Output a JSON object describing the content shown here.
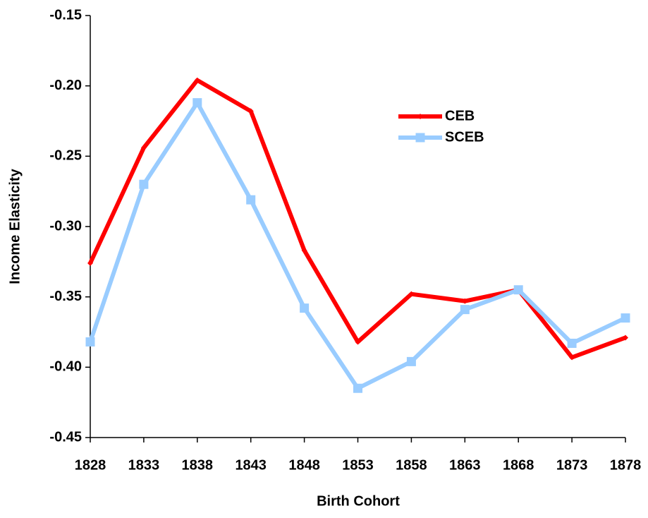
{
  "chart_data": {
    "type": "line",
    "x_label": "Birth Cohort",
    "y_label": "Income Elasticity",
    "x": [
      1828,
      1833,
      1838,
      1843,
      1848,
      1853,
      1858,
      1863,
      1868,
      1873,
      1878
    ],
    "xlim": [
      1828,
      1878
    ],
    "xticks": [
      1828,
      1833,
      1838,
      1843,
      1848,
      1853,
      1858,
      1863,
      1868,
      1873,
      1878
    ],
    "ylim": [
      -0.45,
      -0.15
    ],
    "yticks": [
      -0.45,
      {
        "value": -0.4,
        "label": "-0.40"
      },
      -0.35,
      {
        "value": -0.3,
        "label": "-0.30"
      },
      -0.25,
      {
        "value": -0.2,
        "label": "-0.20"
      },
      -0.15
    ],
    "grid": false,
    "legend": "upper right",
    "series": [
      {
        "name": "CEB",
        "color": "#ff0000",
        "marker": "diamond",
        "values": [
          -0.326,
          -0.244,
          -0.196,
          -0.218,
          -0.317,
          -0.382,
          -0.348,
          -0.353,
          -0.345,
          -0.393,
          -0.379
        ]
      },
      {
        "name": "SCEB",
        "color": "#99ccff",
        "marker": "square",
        "values": [
          -0.382,
          -0.27,
          -0.212,
          -0.281,
          -0.358,
          -0.415,
          -0.396,
          -0.359,
          -0.345,
          -0.383,
          -0.365
        ]
      }
    ]
  }
}
